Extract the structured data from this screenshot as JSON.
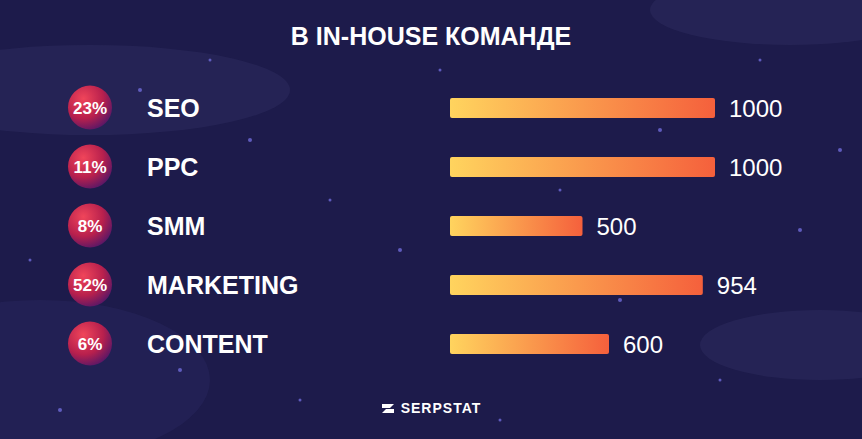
{
  "chart_data": {
    "type": "bar",
    "orientation": "horizontal",
    "title": "В IN-HOUSE КОМАНДЕ",
    "categories": [
      "SEO",
      "PPC",
      "SMM",
      "MARKETING",
      "CONTENT"
    ],
    "values": [
      1000,
      1000,
      500,
      954,
      600
    ],
    "percentage_labels": [
      "23%",
      "11%",
      "8%",
      "52%",
      "6%"
    ],
    "color": "#f5603c",
    "xlim": [
      0,
      1000
    ],
    "data_labels": true,
    "tick_labels": "y",
    "grid": false
  },
  "footer": "SERPSTAT"
}
